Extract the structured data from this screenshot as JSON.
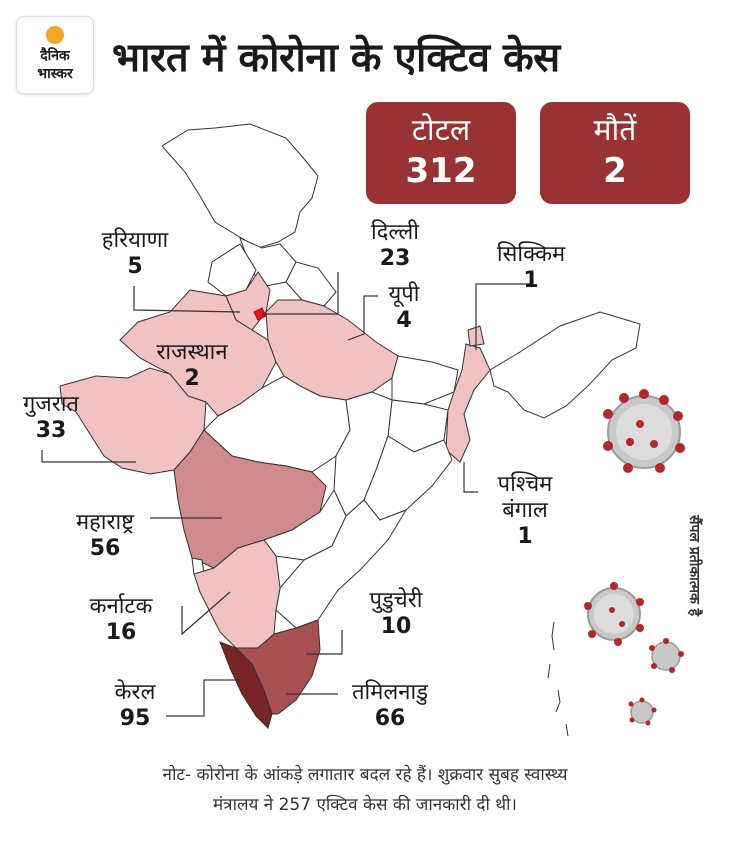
{
  "logo": {
    "line1": "दैनिक",
    "line2": "भास्कर"
  },
  "title": "भारत में कोरोना के एक्टिव केस",
  "stats": {
    "total_label": "टोटल",
    "total_value": "312",
    "deaths_label": "मौतें",
    "deaths_value": "2"
  },
  "regions": {
    "haryana": {
      "name": "हरियाणा",
      "value": "5"
    },
    "delhi": {
      "name": "दिल्ली",
      "value": "23"
    },
    "sikkim": {
      "name": "सिक्किम",
      "value": "1"
    },
    "up": {
      "name": "यूपी",
      "value": "4"
    },
    "rajasthan": {
      "name": "राजस्थान",
      "value": "2"
    },
    "gujarat": {
      "name": "गुजरात",
      "value": "33"
    },
    "west_bengal": {
      "name1": "पश्चिम",
      "name2": "बंगाल",
      "value": "1"
    },
    "maharashtra": {
      "name": "महाराष्ट्र",
      "value": "56"
    },
    "karnataka": {
      "name": "कर्नाटक",
      "value": "16"
    },
    "puducherry": {
      "name": "पुडुचेरी",
      "value": "10"
    },
    "kerala": {
      "name": "केरल",
      "value": "95"
    },
    "tamil_nadu": {
      "name": "तमिलनाडु",
      "value": "66"
    }
  },
  "colors": {
    "box": "#993333",
    "light": "#f0c2c2",
    "medium": "#d08c8c",
    "dark": "#a84f4f",
    "darkest": "#7a2424"
  },
  "side_note": "सैंपल प्रतीकात्मक है",
  "note": {
    "line1": "नोट- कोरोना के आंकड़े लगातार बदल रहे हैं। शुक्रवार सुबह स्वास्थ्य",
    "line2": "मंत्रालय ने 257 एक्टिव केस की जानकारी दी थी।"
  }
}
